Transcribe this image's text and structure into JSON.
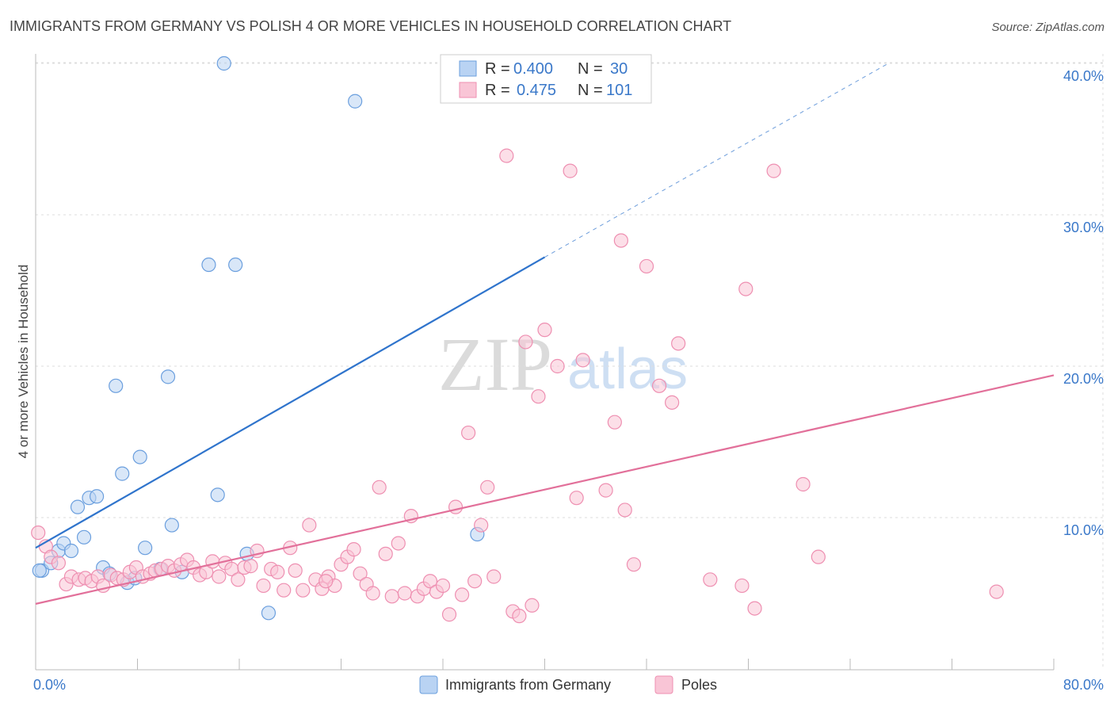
{
  "chart_data": {
    "type": "scatter",
    "title": "IMMIGRANTS FROM GERMANY VS POLISH 4 OR MORE VEHICLES IN HOUSEHOLD CORRELATION CHART",
    "source": "Source: ZipAtlas.com",
    "ylabel": "4 or more Vehicles in Household",
    "xlabel": "",
    "xlim": [
      0,
      80
    ],
    "ylim": [
      0,
      40
    ],
    "x_tick_labels": [
      {
        "value": 0,
        "label": "0.0%"
      },
      {
        "value": 80,
        "label": "80.0%"
      }
    ],
    "y_tick_labels": [
      {
        "value": 10,
        "label": "10.0%"
      },
      {
        "value": 20,
        "label": "20.0%"
      },
      {
        "value": 30,
        "label": "30.0%"
      },
      {
        "value": 40,
        "label": "40.0%"
      }
    ],
    "watermark": {
      "part1": "ZIP",
      "part2": "atlas"
    },
    "legend": {
      "r_label": "R =",
      "n_label": "N =",
      "entries": [
        {
          "r": "0.400",
          "n": "30"
        },
        {
          "r": "0.475",
          "n": "101"
        }
      ]
    },
    "series": [
      {
        "name": "Immigrants from Germany",
        "fill": "#b9d3f3",
        "stroke": "#6b9fde",
        "line_color": "#2f74cc",
        "trend": {
          "x0": 0,
          "y0": 8.0,
          "x1": 40,
          "y1": 27.2,
          "x_dash_end": 67,
          "y_dash_end": 40.0
        },
        "points": [
          [
            0.5,
            6.5
          ],
          [
            1.2,
            7.0
          ],
          [
            1.8,
            7.8
          ],
          [
            2.2,
            8.3
          ],
          [
            2.8,
            7.8
          ],
          [
            3.3,
            10.7
          ],
          [
            3.8,
            8.7
          ],
          [
            4.2,
            11.3
          ],
          [
            4.8,
            11.4
          ],
          [
            5.3,
            6.7
          ],
          [
            5.8,
            6.3
          ],
          [
            6.3,
            18.7
          ],
          [
            6.8,
            12.9
          ],
          [
            7.2,
            5.7
          ],
          [
            7.8,
            6.0
          ],
          [
            8.2,
            14.0
          ],
          [
            8.6,
            8.0
          ],
          [
            9.8,
            6.6
          ],
          [
            10.4,
            19.3
          ],
          [
            10.7,
            9.5
          ],
          [
            11.5,
            6.4
          ],
          [
            13.6,
            26.7
          ],
          [
            14.3,
            11.5
          ],
          [
            14.8,
            40.0
          ],
          [
            15.7,
            26.7
          ],
          [
            16.6,
            7.6
          ],
          [
            18.3,
            3.7
          ],
          [
            25.1,
            37.5
          ],
          [
            34.7,
            8.9
          ],
          [
            0.3,
            6.5
          ]
        ]
      },
      {
        "name": "Poles",
        "fill": "#f9c5d6",
        "stroke": "#ee8fb1",
        "line_color": "#e2709a",
        "trend": {
          "x0": 0,
          "y0": 4.3,
          "x1": 80,
          "y1": 19.4
        },
        "points": [
          [
            0.2,
            9.0
          ],
          [
            0.8,
            8.1
          ],
          [
            1.2,
            7.4
          ],
          [
            1.8,
            7.0
          ],
          [
            2.4,
            5.6
          ],
          [
            2.8,
            6.1
          ],
          [
            3.4,
            5.9
          ],
          [
            3.9,
            6.0
          ],
          [
            4.4,
            5.8
          ],
          [
            4.9,
            6.1
          ],
          [
            5.3,
            5.5
          ],
          [
            5.9,
            6.2
          ],
          [
            6.4,
            6.0
          ],
          [
            6.9,
            5.9
          ],
          [
            7.4,
            6.4
          ],
          [
            7.9,
            6.7
          ],
          [
            8.4,
            6.1
          ],
          [
            9.0,
            6.3
          ],
          [
            9.4,
            6.5
          ],
          [
            9.9,
            6.6
          ],
          [
            10.4,
            6.8
          ],
          [
            10.9,
            6.5
          ],
          [
            11.4,
            6.9
          ],
          [
            11.9,
            7.2
          ],
          [
            12.4,
            6.7
          ],
          [
            12.9,
            6.2
          ],
          [
            13.4,
            6.4
          ],
          [
            13.9,
            7.1
          ],
          [
            14.4,
            6.1
          ],
          [
            14.9,
            7.0
          ],
          [
            15.4,
            6.6
          ],
          [
            15.9,
            5.9
          ],
          [
            16.4,
            6.7
          ],
          [
            16.9,
            6.8
          ],
          [
            17.4,
            7.8
          ],
          [
            17.9,
            5.5
          ],
          [
            18.5,
            6.6
          ],
          [
            19.0,
            6.4
          ],
          [
            19.5,
            5.2
          ],
          [
            20.0,
            8.0
          ],
          [
            20.4,
            6.5
          ],
          [
            21.0,
            5.2
          ],
          [
            21.5,
            9.5
          ],
          [
            22.0,
            5.9
          ],
          [
            22.5,
            5.3
          ],
          [
            23.0,
            6.1
          ],
          [
            23.5,
            5.5
          ],
          [
            24.0,
            6.9
          ],
          [
            24.5,
            7.4
          ],
          [
            25.0,
            7.9
          ],
          [
            25.5,
            6.3
          ],
          [
            26.0,
            5.6
          ],
          [
            26.5,
            5.0
          ],
          [
            27.0,
            12.0
          ],
          [
            27.5,
            7.6
          ],
          [
            28.0,
            4.8
          ],
          [
            28.5,
            8.3
          ],
          [
            29.0,
            5.0
          ],
          [
            29.5,
            10.1
          ],
          [
            30.0,
            4.8
          ],
          [
            30.5,
            5.3
          ],
          [
            31.0,
            5.8
          ],
          [
            31.5,
            5.1
          ],
          [
            32.0,
            5.5
          ],
          [
            32.5,
            3.6
          ],
          [
            33.0,
            10.7
          ],
          [
            33.5,
            4.9
          ],
          [
            34.0,
            15.6
          ],
          [
            34.5,
            5.8
          ],
          [
            35.0,
            9.5
          ],
          [
            35.5,
            12.0
          ],
          [
            36.0,
            6.1
          ],
          [
            37.0,
            33.9
          ],
          [
            37.5,
            3.8
          ],
          [
            38.0,
            3.5
          ],
          [
            38.5,
            21.6
          ],
          [
            39.0,
            4.2
          ],
          [
            39.5,
            18.0
          ],
          [
            40.0,
            22.4
          ],
          [
            41.0,
            20.0
          ],
          [
            42.0,
            32.9
          ],
          [
            42.5,
            11.3
          ],
          [
            43.0,
            20.4
          ],
          [
            44.8,
            11.8
          ],
          [
            45.5,
            16.3
          ],
          [
            46.0,
            28.3
          ],
          [
            46.3,
            10.5
          ],
          [
            47.0,
            6.9
          ],
          [
            48.0,
            26.6
          ],
          [
            49.0,
            18.7
          ],
          [
            50.0,
            17.6
          ],
          [
            50.5,
            21.5
          ],
          [
            53.0,
            5.9
          ],
          [
            55.5,
            5.5
          ],
          [
            55.8,
            25.1
          ],
          [
            56.5,
            4.0
          ],
          [
            58.0,
            32.9
          ],
          [
            60.3,
            12.2
          ],
          [
            61.5,
            7.4
          ],
          [
            75.5,
            5.1
          ],
          [
            22.8,
            5.8
          ]
        ]
      }
    ],
    "bottom_legend": [
      {
        "label": "Immigrants from Germany"
      },
      {
        "label": "Poles"
      }
    ]
  }
}
